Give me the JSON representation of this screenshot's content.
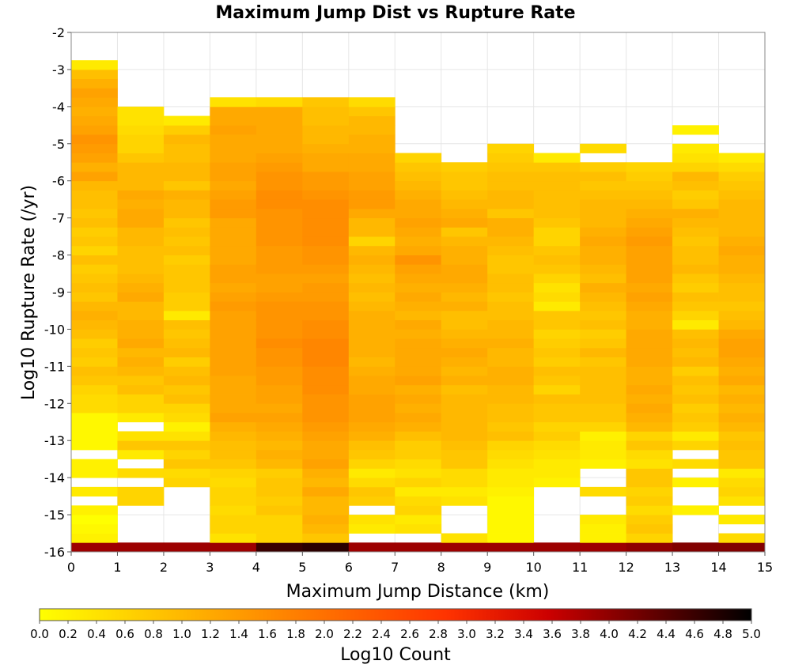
{
  "chart_data": {
    "type": "heatmap",
    "title": "Maximum Jump Dist vs Rupture Rate",
    "xlabel": "Maximum Jump Distance (km)",
    "ylabel": "Log10 Rupture Rate (/yr)",
    "colorbar_label": "Log10 Count",
    "xlim": [
      0,
      15
    ],
    "ylim": [
      -16,
      -2
    ],
    "x_ticks": [
      "0",
      "1",
      "2",
      "3",
      "4",
      "5",
      "6",
      "7",
      "8",
      "9",
      "10",
      "11",
      "12",
      "13",
      "14",
      "15"
    ],
    "y_ticks": [
      "-2",
      "-3",
      "-4",
      "-5",
      "-6",
      "-7",
      "-8",
      "-9",
      "-10",
      "-11",
      "-12",
      "-13",
      "-14",
      "-15",
      "-16"
    ],
    "colorbar_range": [
      0.0,
      5.0
    ],
    "colorbar_ticks": [
      "0.0",
      "0.2",
      "0.4",
      "0.6",
      "0.8",
      "1.0",
      "1.2",
      "1.4",
      "1.6",
      "1.8",
      "2.0",
      "2.2",
      "2.4",
      "2.6",
      "2.8",
      "3.0",
      "3.2",
      "3.4",
      "3.6",
      "3.8",
      "4.0",
      "4.2",
      "4.4",
      "4.6",
      "4.8",
      "5.0"
    ],
    "colormap": [
      "#ffff00",
      "#ffcc00",
      "#ff9900",
      "#ff6600",
      "#ff3300",
      "#cc0000",
      "#660000",
      "#000000"
    ],
    "grid": true,
    "legend": "colorbar-bottom",
    "x_bin_width": 1,
    "y_bin_height": 0.25,
    "y_bin_start": -16,
    "columns": [
      {
        "x": 0.5,
        "values": [
          3.9,
          0.2,
          0.1,
          0,
          0.2,
          null,
          0.3,
          null,
          0.2,
          0.2,
          null,
          0.1,
          0.1,
          0.1,
          0.1,
          0.5,
          0.5,
          0.6,
          0.8,
          0.9,
          0.7,
          0.8,
          0.7,
          0.9,
          1.0,
          1.1,
          1.0,
          0.8,
          0.9,
          0.8,
          0.7,
          0.9,
          0.6,
          0.8,
          0.7,
          0.9,
          0.8,
          0.9,
          0.9,
          1.0,
          1.3,
          1.1,
          1.3,
          1.4,
          1.5,
          1.3,
          1.2,
          1.1,
          1.2,
          1.3,
          1.1,
          0.9,
          0.3
        ]
      },
      {
        "x": 1.5,
        "values": [
          3.9,
          null,
          null,
          null,
          null,
          0.6,
          0.6,
          null,
          0.5,
          null,
          0.3,
          0.8,
          0.4,
          null,
          0.3,
          0.6,
          0.6,
          0.9,
          0.8,
          1.0,
          1.1,
          1.0,
          1.2,
          1.1,
          1.1,
          1.0,
          1.0,
          1.2,
          1.1,
          1.0,
          0.9,
          0.9,
          0.9,
          1.0,
          1.0,
          1.2,
          1.2,
          1.1,
          1.2,
          1.0,
          1.0,
          1.0,
          0.8,
          0.6,
          0.6,
          0.5,
          0.4,
          0.4
        ]
      },
      {
        "x": 2.5,
        "values": [
          3.9,
          null,
          null,
          null,
          null,
          null,
          null,
          0.6,
          0.5,
          0.8,
          0.6,
          0.8,
          0.4,
          0.2,
          0.5,
          0.6,
          0.9,
          0.8,
          1.0,
          0.9,
          0.7,
          1.0,
          0.9,
          0.8,
          0.9,
          0.3,
          0.7,
          0.7,
          0.8,
          0.8,
          0.8,
          0.7,
          0.9,
          0.8,
          0.9,
          0.8,
          1.0,
          1.0,
          1.1,
          0.8,
          1.0,
          1.0,
          0.9,
          0.9,
          1.0,
          0.7,
          0.3
        ]
      },
      {
        "x": 3.5,
        "values": [
          3.9,
          0.4,
          0.6,
          0.6,
          0.5,
          0.6,
          0.6,
          0.5,
          0.6,
          0.8,
          0.9,
          0.9,
          1.0,
          1.1,
          1.3,
          1.2,
          1.2,
          1.2,
          1.2,
          1.3,
          1.3,
          1.3,
          1.3,
          1.3,
          1.3,
          1.3,
          1.4,
          1.3,
          1.2,
          1.3,
          1.3,
          1.2,
          1.2,
          1.2,
          1.2,
          1.2,
          1.4,
          1.4,
          1.3,
          1.2,
          1.3,
          1.3,
          1.2,
          1.2,
          1.2,
          1.3,
          1.2,
          1.2,
          0.4
        ]
      },
      {
        "x": 4.5,
        "values": [
          4.6,
          0.6,
          0.6,
          0.6,
          0.8,
          0.7,
          0.8,
          0.8,
          0.7,
          1.0,
          1.1,
          1.0,
          1.1,
          1.2,
          1.3,
          1.2,
          1.3,
          1.3,
          1.4,
          1.4,
          1.5,
          1.5,
          1.6,
          1.5,
          1.5,
          1.5,
          1.5,
          1.4,
          1.3,
          1.3,
          1.4,
          1.4,
          1.4,
          1.5,
          1.5,
          1.5,
          1.5,
          1.6,
          1.6,
          1.5,
          1.5,
          1.4,
          1.3,
          1.2,
          1.2,
          1.2,
          1.2,
          1.2,
          0.5
        ]
      },
      {
        "x": 5.5,
        "values": [
          4.7,
          0.8,
          1.0,
          1.1,
          1.0,
          1.0,
          1.2,
          1.0,
          1.1,
          1.3,
          1.2,
          1.2,
          1.3,
          1.4,
          1.5,
          1.5,
          1.5,
          1.6,
          1.6,
          1.6,
          1.7,
          1.7,
          1.7,
          1.6,
          1.6,
          1.5,
          1.5,
          1.4,
          1.4,
          1.3,
          1.4,
          1.5,
          1.5,
          1.6,
          1.6,
          1.6,
          1.6,
          1.6,
          1.5,
          1.4,
          1.4,
          1.2,
          1.2,
          1.1,
          1.0,
          1.0,
          0.9,
          0.9,
          0.8
        ]
      },
      {
        "x": 6.5,
        "values": [
          3.9,
          null,
          0.3,
          0.4,
          null,
          0.7,
          0.8,
          0.5,
          0.3,
          0.6,
          0.8,
          0.9,
          1.1,
          1.2,
          1.3,
          1.3,
          1.3,
          1.2,
          1.2,
          1.1,
          1.0,
          1.1,
          1.1,
          1.1,
          1.1,
          1.1,
          1.0,
          0.9,
          1.0,
          0.9,
          1.0,
          1.1,
          1.0,
          0.6,
          1.0,
          1.0,
          1.2,
          1.4,
          1.4,
          1.3,
          1.3,
          1.2,
          1.2,
          1.1,
          1.1,
          1.0,
          1.0,
          0.8,
          0.5
        ]
      },
      {
        "x": 7.5,
        "values": [
          3.9,
          null,
          0.4,
          0.3,
          0.6,
          0.5,
          0.3,
          0.6,
          0.4,
          0.5,
          0.7,
          0.7,
          0.9,
          1.1,
          1.2,
          1.1,
          1.2,
          1.1,
          1.3,
          1.2,
          1.2,
          1.2,
          1.2,
          1.1,
          1.2,
          1.0,
          1.1,
          1.2,
          1.1,
          1.2,
          1.3,
          1.5,
          1.2,
          1.1,
          1.2,
          1.3,
          1.2,
          1.2,
          1.1,
          1.0,
          0.9,
          0.8,
          0.6
        ]
      },
      {
        "x": 8.5,
        "values": [
          3.9,
          0.4,
          null,
          null,
          null,
          0.4,
          0.3,
          0.5,
          0.5,
          0.8,
          0.8,
          0.9,
          1.0,
          1.0,
          1.0,
          1.0,
          1.0,
          0.9,
          1.1,
          1.0,
          1.1,
          1.2,
          1.1,
          1.0,
          0.9,
          0.9,
          1.1,
          1.0,
          1.1,
          1.2,
          1.2,
          1.1,
          1.1,
          1.0,
          0.8,
          1.2,
          1.1,
          1.0,
          0.9,
          0.8,
          0.8,
          0.7
        ]
      },
      {
        "x": 9.5,
        "values": [
          3.9,
          0.1,
          0.1,
          0.1,
          0.1,
          0.1,
          0.2,
          0.3,
          0.3,
          0.4,
          0.5,
          0.6,
          0.9,
          0.8,
          0.9,
          0.9,
          1.0,
          1.0,
          1.1,
          1.1,
          1.0,
          1.0,
          1.1,
          1.0,
          1.0,
          0.9,
          0.9,
          0.8,
          0.9,
          0.9,
          0.8,
          0.8,
          0.9,
          1.0,
          1.1,
          1.1,
          0.8,
          1.0,
          1.0,
          0.9,
          0.9,
          0.8,
          0.7,
          0.6
        ]
      },
      {
        "x": 10.5,
        "values": [
          3.9,
          null,
          null,
          null,
          null,
          null,
          null,
          0.2,
          0.3,
          0.3,
          0.4,
          0.5,
          0.7,
          0.6,
          0.8,
          0.8,
          0.9,
          0.6,
          0.8,
          0.9,
          0.7,
          0.8,
          0.7,
          0.6,
          0.8,
          0.8,
          0.3,
          0.5,
          0.4,
          0.6,
          0.8,
          0.9,
          0.8,
          0.6,
          0.6,
          0.8,
          0.9,
          0.9,
          0.9,
          0.9,
          0.9,
          0.8,
          0.3
        ]
      },
      {
        "x": 11.5,
        "values": [
          3.9,
          0.2,
          0.2,
          0.3,
          null,
          null,
          0.5,
          null,
          null,
          0.2,
          0.3,
          0.3,
          0.2,
          0.6,
          0.8,
          0.8,
          0.9,
          0.9,
          0.9,
          0.9,
          0.8,
          1.0,
          0.8,
          0.7,
          0.9,
          0.8,
          0.9,
          1.0,
          1.1,
          0.9,
          1.0,
          1.1,
          1.1,
          1.2,
          1.1,
          1.0,
          1.0,
          1.0,
          0.9,
          0.8,
          0.9,
          0.7,
          null,
          0.5
        ]
      },
      {
        "x": 12.5,
        "values": [
          4.0,
          0.6,
          0.8,
          0.7,
          0.5,
          0.7,
          0.6,
          0.8,
          0.8,
          0.4,
          0.5,
          0.8,
          0.6,
          1.0,
          1.1,
          1.2,
          1.1,
          1.2,
          1.1,
          1.1,
          1.2,
          1.2,
          1.2,
          1.2,
          1.1,
          1.1,
          1.2,
          1.3,
          1.2,
          1.3,
          1.3,
          1.3,
          1.3,
          1.4,
          1.3,
          1.2,
          1.1,
          1.0,
          0.9,
          0.8,
          0.7,
          0.6,
          null,
          null
        ]
      },
      {
        "x": 13.5,
        "values": [
          4.1,
          null,
          null,
          null,
          0.2,
          null,
          null,
          0.2,
          null,
          0.5,
          null,
          0.6,
          0.3,
          0.7,
          0.8,
          0.7,
          0.9,
          0.8,
          0.9,
          0.7,
          1.0,
          0.9,
          1.0,
          0.9,
          0.3,
          0.6,
          0.8,
          0.9,
          0.7,
          0.8,
          1.0,
          0.9,
          0.9,
          0.8,
          0.9,
          1.0,
          1.1,
          0.8,
          0.7,
          0.9,
          1.0,
          0.6,
          0.4,
          0.3,
          null,
          0.2
        ]
      },
      {
        "x": 14.5,
        "values": [
          4.1,
          0.5,
          null,
          0.3,
          null,
          0.4,
          0.6,
          0.5,
          0.3,
          0.8,
          0.8,
          0.9,
          0.8,
          1.0,
          1.1,
          1.0,
          1.1,
          1.0,
          1.2,
          1.1,
          1.2,
          1.3,
          1.3,
          1.2,
          1.0,
          0.9,
          0.8,
          0.9,
          0.9,
          1.0,
          1.1,
          1.1,
          1.2,
          1.1,
          1.0,
          1.0,
          1.0,
          1.0,
          0.9,
          0.8,
          0.7,
          0.5,
          0.3
        ]
      }
    ]
  }
}
